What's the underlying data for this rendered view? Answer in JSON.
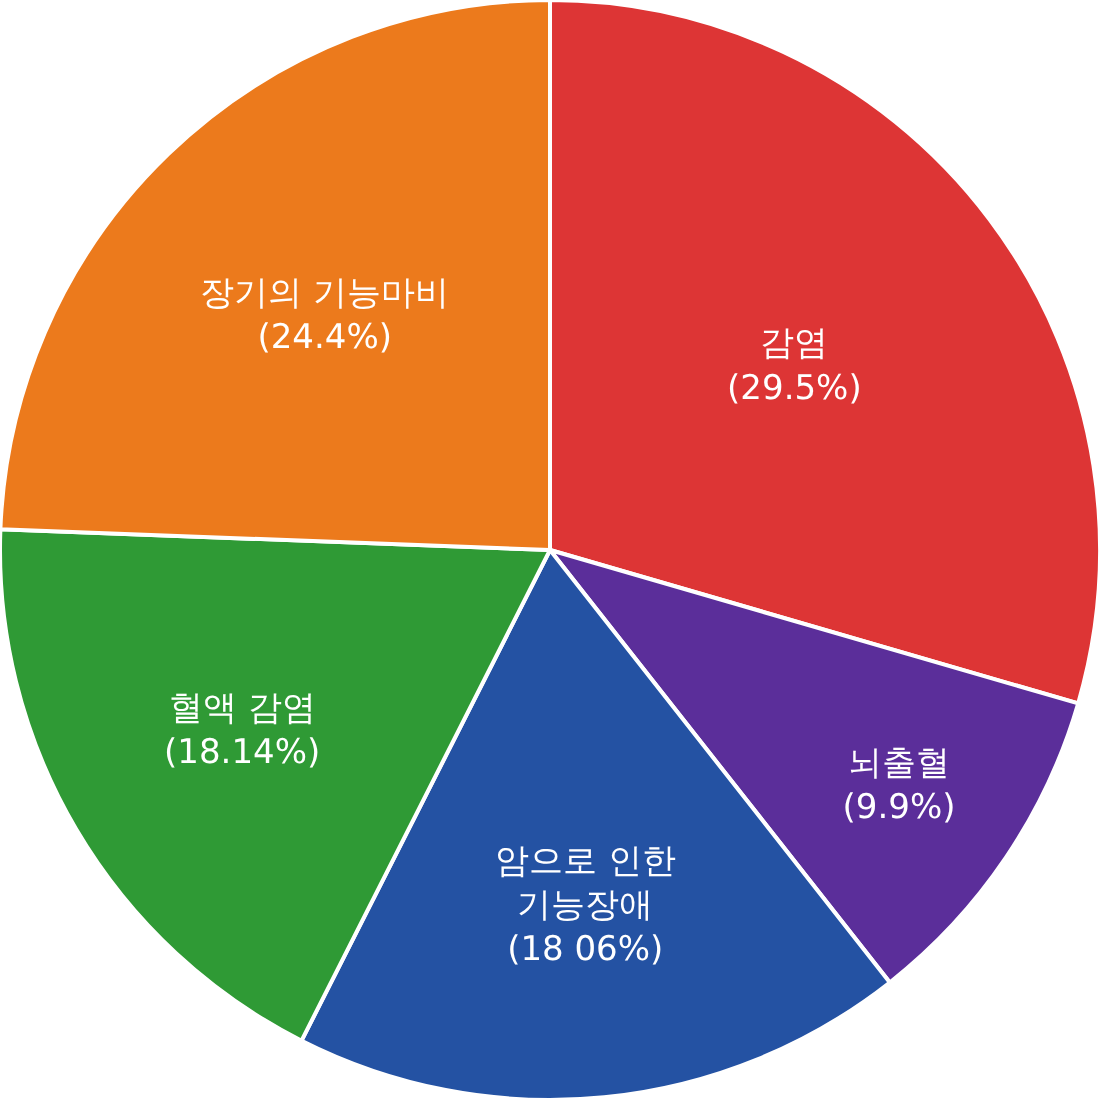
{
  "chart_data": {
    "type": "pie",
    "categories": [
      "감염",
      "뇌출혈",
      "암으로 인한 기능장애",
      "혈액 감염",
      "장기의 기능마비"
    ],
    "values": [
      29.5,
      9.9,
      18.06,
      18.14,
      24.4
    ],
    "value_labels": [
      "(29.5%)",
      "(9.9%)",
      "(18 06%)",
      "(18.14%)",
      "(24.4%)"
    ],
    "colors": [
      "#dd3535",
      "#5b2e9a",
      "#2452a3",
      "#2f9a35",
      "#ec7a1c"
    ],
    "legend": false
  }
}
